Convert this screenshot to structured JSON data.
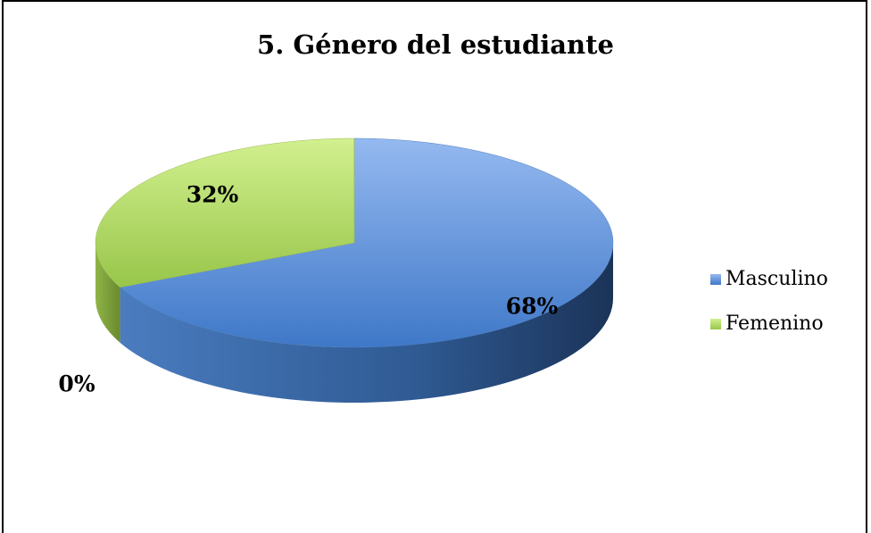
{
  "chart_data": {
    "type": "pie",
    "title": "5. Género del estudiante",
    "categories": [
      "Masculino",
      "Femenino",
      null
    ],
    "values": [
      68,
      32,
      0
    ],
    "value_labels": [
      "68%",
      "32%",
      "0%"
    ],
    "colors": [
      "#4f81bd",
      "#9bbb59",
      "#9bbb59"
    ],
    "legend": "right"
  }
}
